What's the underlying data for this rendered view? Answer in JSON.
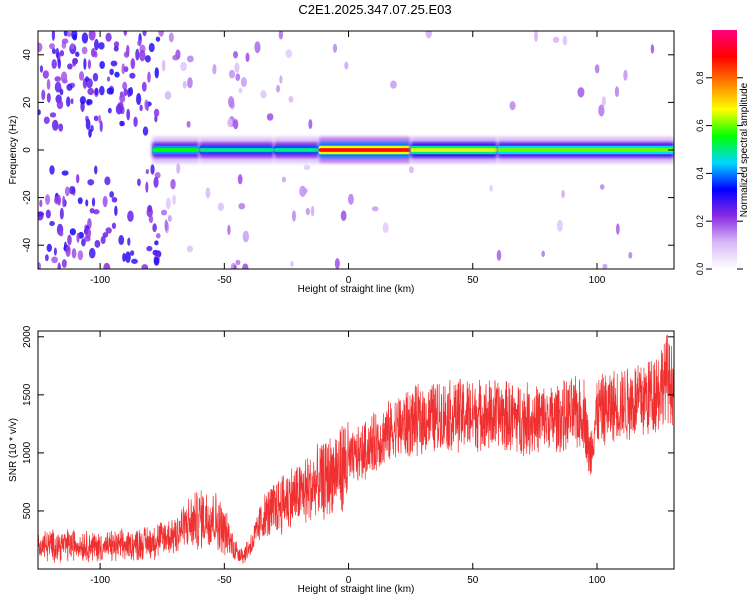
{
  "page": {
    "title": "C2E1.2025.347.07.25.E03"
  },
  "chart_data": [
    {
      "type": "heatmap",
      "xlabel": "Height of straight line (km)",
      "ylabel": "Frequency (Hz)",
      "xlim": [
        -125,
        131
      ],
      "ylim": [
        -50,
        50
      ],
      "xticks": [
        -100,
        -50,
        0,
        50,
        100
      ],
      "yticks": [
        -40,
        -20,
        0,
        20,
        40
      ],
      "grid": false,
      "colorbar": {
        "label": "Normalized spectral amplitude",
        "range": [
          0,
          1
        ],
        "ticks": [
          "0.0",
          "0.2",
          "0.4",
          "0.6",
          "0.8"
        ],
        "colors": [
          "#ffffff",
          "#d8b8f8",
          "#8a2be2",
          "#0000ff",
          "#00d8ff",
          "#00ff00",
          "#ffff00",
          "#ff8000",
          "#ff0000",
          "#ff0080"
        ]
      },
      "ridge": {
        "frequency": 0,
        "segments": [
          {
            "x": [
              -79,
              -60
            ],
            "amplitude": 0.55
          },
          {
            "x": [
              -60,
              -30
            ],
            "amplitude": 0.5
          },
          {
            "x": [
              -30,
              -12
            ],
            "amplitude": 0.5
          },
          {
            "x": [
              -12,
              25
            ],
            "amplitude": 0.88
          },
          {
            "x": [
              25,
              60
            ],
            "amplitude": 0.65
          },
          {
            "x": [
              60,
              131
            ],
            "amplitude": 0.6
          }
        ]
      }
    },
    {
      "type": "line",
      "xlabel": "Height of straight line (km)",
      "ylabel": "SNR (10 * v/v)",
      "xlim": [
        -125,
        131
      ],
      "ylim": [
        0,
        2050
      ],
      "xticks": [
        -100,
        -50,
        0,
        50,
        100
      ],
      "yticks": [
        500,
        1000,
        1500,
        2000
      ],
      "line_color": "#f03030",
      "series": [
        {
          "x": [
            -125,
            -110,
            -100,
            -90,
            -80,
            -75,
            -70,
            -65,
            -60,
            -55,
            -50,
            -45,
            -42,
            -38,
            -35,
            -30,
            -25,
            -20,
            -15,
            -10,
            -5,
            0,
            5,
            10,
            15,
            20,
            25,
            30,
            35,
            40,
            45,
            50,
            55,
            60,
            65,
            70,
            75,
            80,
            85,
            90,
            95,
            97,
            100,
            105,
            110,
            115,
            120,
            125,
            128,
            131
          ],
          "y": [
            200,
            210,
            190,
            200,
            230,
            260,
            300,
            380,
            430,
            460,
            330,
            150,
            120,
            260,
            420,
            520,
            600,
            640,
            700,
            760,
            840,
            920,
            1000,
            1080,
            1150,
            1220,
            1260,
            1290,
            1310,
            1320,
            1330,
            1330,
            1320,
            1330,
            1310,
            1300,
            1290,
            1280,
            1300,
            1330,
            1350,
            950,
            1340,
            1380,
            1420,
            1450,
            1480,
            1560,
            1650,
            1600
          ]
        }
      ]
    }
  ]
}
